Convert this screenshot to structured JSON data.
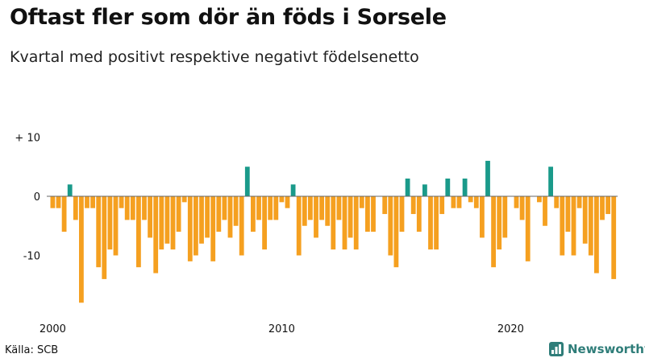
{
  "title": "Oftast fler som dör än föds i Sorsele",
  "subtitle": "Kvartal med positivt respektive negativt födelsenetto",
  "source": "Källa: SCB",
  "brand": "Newsworthy",
  "colors": {
    "positive": "#1a9a8a",
    "negative": "#f5a020",
    "zero_line": "#666666",
    "brand": "#2f7d79"
  },
  "chart_data": {
    "type": "bar",
    "title": "Oftast fler som dör än föds i Sorsele",
    "subtitle": "Kvartal med positivt respektive negativt födelsenetto",
    "xlabel": "",
    "ylabel": "",
    "start_year": 2000,
    "start_quarter": 1,
    "ylim": [
      -18,
      11
    ],
    "y_ticks": [
      {
        "value": 10,
        "label": "+ 10"
      },
      {
        "value": 0,
        "label": "0"
      },
      {
        "value": -10,
        "label": "-10"
      }
    ],
    "x_ticks": [
      {
        "year": 2000,
        "label": "2000"
      },
      {
        "year": 2010,
        "label": "2010"
      },
      {
        "year": 2020,
        "label": "2020"
      }
    ],
    "values": [
      -2,
      -2,
      -6,
      2,
      -4,
      -18,
      -2,
      -2,
      -12,
      -14,
      -9,
      -10,
      -2,
      -4,
      -4,
      -12,
      -4,
      -7,
      -13,
      -9,
      -8,
      -9,
      -6,
      -1,
      -11,
      -10,
      -8,
      -7,
      -11,
      -6,
      -4,
      -7,
      -5,
      -10,
      5,
      -6,
      -4,
      -9,
      -4,
      -4,
      -1,
      -2,
      2,
      -10,
      -5,
      -4,
      -7,
      -4,
      -5,
      -9,
      -4,
      -9,
      -7,
      -9,
      -2,
      -6,
      -6,
      0,
      -3,
      -10,
      -12,
      -6,
      3,
      -3,
      -6,
      2,
      -9,
      -9,
      -3,
      3,
      -2,
      -2,
      3,
      -1,
      -2,
      -7,
      6,
      -12,
      -9,
      -7,
      0,
      -2,
      -4,
      -11,
      0,
      -1,
      -5,
      5,
      -2,
      -10,
      -6,
      -10,
      -2,
      -8,
      -10,
      -13,
      -4,
      -3,
      -14
    ]
  }
}
